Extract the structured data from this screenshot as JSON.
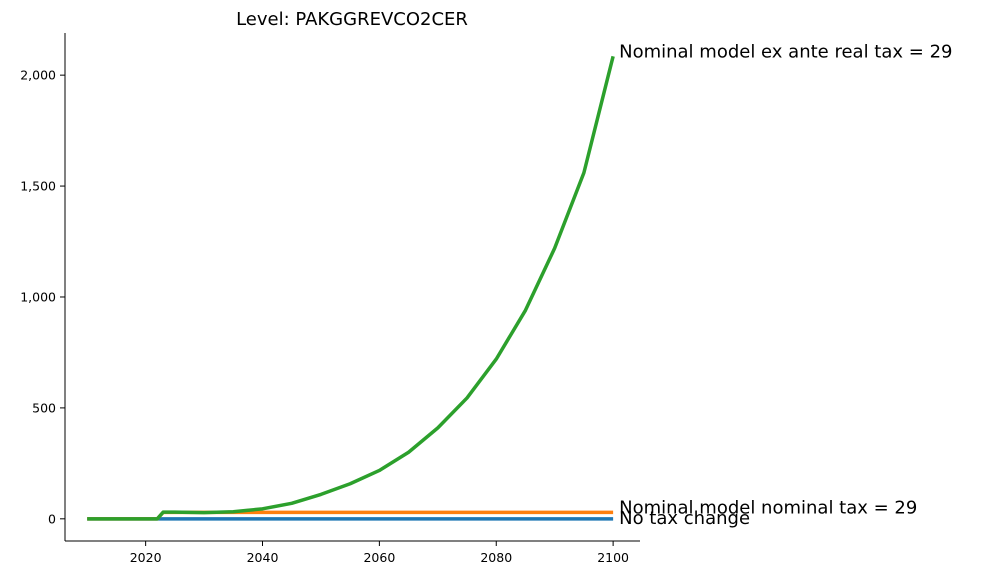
{
  "chart_data": {
    "type": "line",
    "title": "Level: PAKGGREVCO2CER",
    "xlabel": "",
    "ylabel": "",
    "xlim": [
      2006.2,
      2104.6
    ],
    "ylim": [
      -100,
      2190
    ],
    "x_ticks": [
      2020,
      2040,
      2060,
      2080,
      2100
    ],
    "x_tick_labels": [
      "2020",
      "2040",
      "2060",
      "2080",
      "2100"
    ],
    "y_ticks": [
      0,
      500,
      1000,
      1500,
      2000
    ],
    "y_tick_labels": [
      "0",
      "500",
      "1,000",
      "1,500",
      "2,000"
    ],
    "grid": false,
    "legend": "none",
    "series": [
      {
        "name": "No tax change",
        "color": "#1f77b4",
        "x": [
          2010,
          2022,
          2023,
          2100
        ],
        "y": [
          0,
          0,
          0,
          0
        ]
      },
      {
        "name": "Nominal model nominal tax = 29",
        "color": "#ff7f0e",
        "x": [
          2010,
          2022,
          2023,
          2030,
          2040,
          2050,
          2060,
          2070,
          2080,
          2090,
          2100
        ],
        "y": [
          0,
          0,
          29,
          29,
          29,
          29,
          29,
          29,
          29,
          29,
          29
        ]
      },
      {
        "name": "Nominal model ex ante real tax = 29",
        "color": "#2ca02c",
        "x": [
          2010,
          2022,
          2023,
          2025,
          2030,
          2035,
          2040,
          2045,
          2050,
          2055,
          2060,
          2065,
          2070,
          2075,
          2080,
          2085,
          2090,
          2095,
          2100
        ],
        "y": [
          0,
          0,
          30,
          30,
          28,
          32,
          45,
          70,
          110,
          158,
          218,
          300,
          410,
          545,
          720,
          940,
          1220,
          1560,
          2085
        ]
      }
    ]
  }
}
